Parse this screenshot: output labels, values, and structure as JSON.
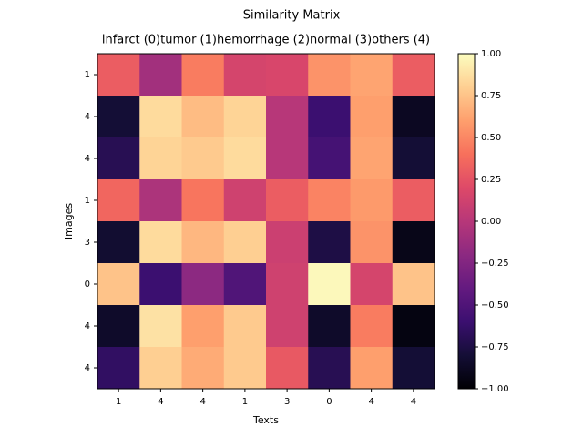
{
  "chart_data": {
    "type": "heatmap",
    "title": "Similarity Matrix",
    "subtitle": "infarct (0)tumor (1)hemorrhage (2)normal (3)others (4)",
    "x_label": "Texts",
    "y_label": "Images",
    "x_categories": [
      "1",
      "4",
      "4",
      "1",
      "3",
      "0",
      "4",
      "4"
    ],
    "y_categories": [
      "1",
      "4",
      "4",
      "1",
      "3",
      "0",
      "4",
      "4"
    ],
    "values": [
      [
        0.3,
        -0.1,
        0.45,
        0.15,
        0.17,
        0.55,
        0.62,
        0.3
      ],
      [
        -0.8,
        0.85,
        0.72,
        0.82,
        0.0,
        -0.6,
        0.6,
        -0.88
      ],
      [
        -0.7,
        0.82,
        0.78,
        0.85,
        0.0,
        -0.55,
        0.62,
        -0.8
      ],
      [
        0.35,
        -0.05,
        0.42,
        0.12,
        0.3,
        0.48,
        0.58,
        0.3
      ],
      [
        -0.82,
        0.85,
        0.7,
        0.8,
        0.1,
        -0.75,
        0.55,
        -0.92
      ],
      [
        0.75,
        -0.6,
        -0.2,
        -0.5,
        0.12,
        0.98,
        0.15,
        0.75
      ],
      [
        -0.85,
        0.88,
        0.6,
        0.78,
        0.12,
        -0.85,
        0.45,
        -0.95
      ],
      [
        -0.65,
        0.8,
        0.65,
        0.78,
        0.28,
        -0.7,
        0.6,
        -0.8
      ]
    ],
    "colormap": "magma",
    "colorbar_lim": [
      -1,
      1
    ],
    "colorbar_ticks": [
      {
        "value": -1,
        "label": "−1.00"
      },
      {
        "value": -0.75,
        "label": "−0.75"
      },
      {
        "value": -0.5,
        "label": "−0.50"
      },
      {
        "value": -0.25,
        "label": "−0.25"
      },
      {
        "value": 0,
        "label": "0.00"
      },
      {
        "value": 0.25,
        "label": "0.25"
      },
      {
        "value": 0.5,
        "label": "0.50"
      },
      {
        "value": 0.75,
        "label": "0.75"
      },
      {
        "value": 1,
        "label": "1.00"
      }
    ]
  }
}
